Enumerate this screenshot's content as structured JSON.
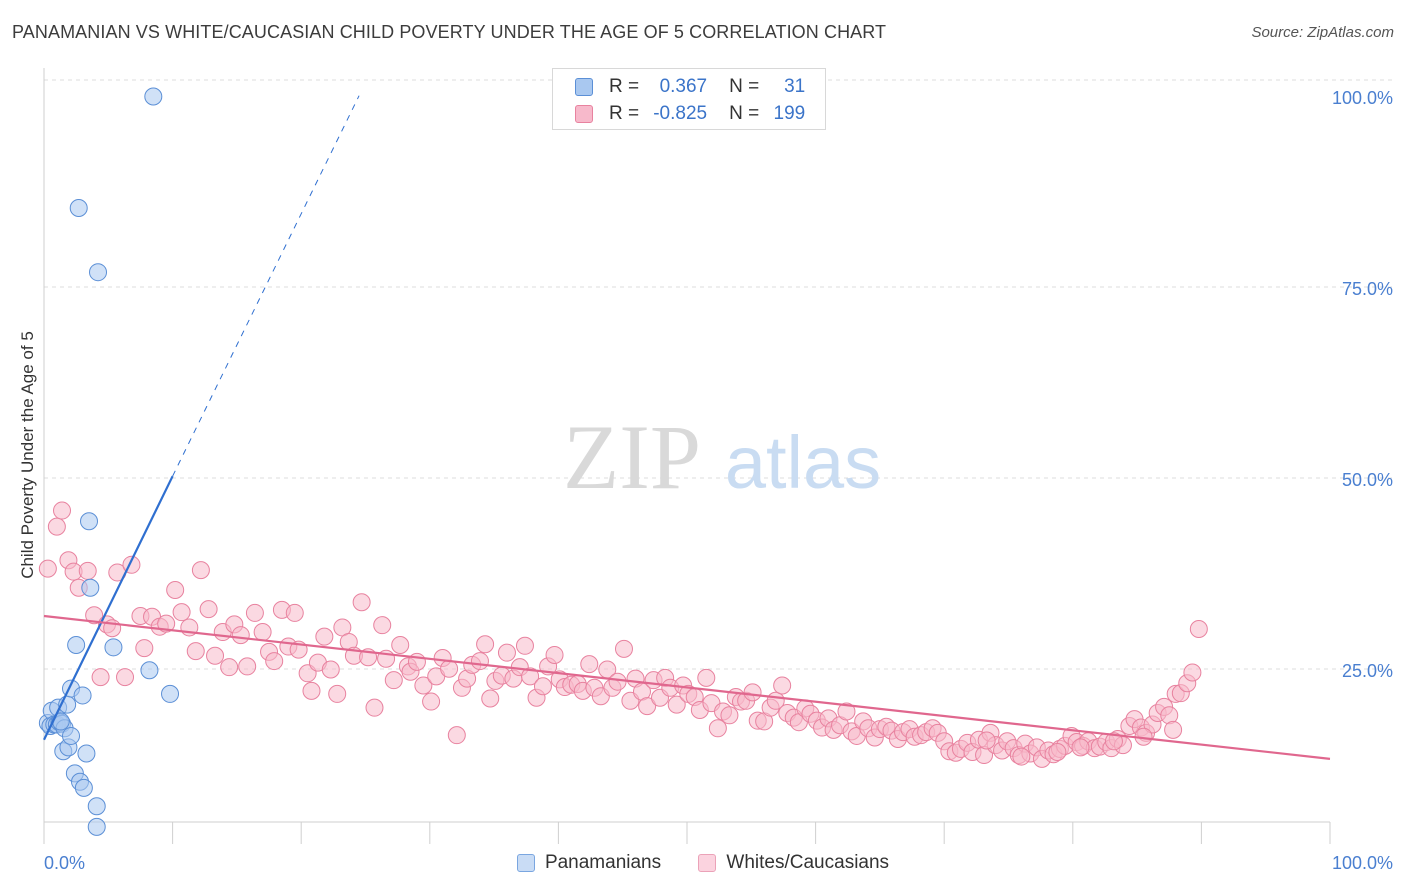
{
  "header": {
    "title": "PANAMANIAN VS WHITE/CAUCASIAN CHILD POVERTY UNDER THE AGE OF 5 CORRELATION CHART",
    "source": "Source: ZipAtlas.com"
  },
  "watermark": {
    "zip": "ZIP",
    "atlas": "atlas"
  },
  "legend": {
    "series": [
      {
        "r_label": "R =",
        "r_value": "0.367",
        "n_label": "N =",
        "n_value": "31",
        "color": "#a9c8f0",
        "stroke": "#5b8fd6"
      },
      {
        "r_label": "R =",
        "r_value": "-0.825",
        "n_label": "N =",
        "n_value": "199",
        "color": "#f7b9cb",
        "stroke": "#e8829f"
      }
    ]
  },
  "chart_data": {
    "type": "scatter",
    "title": "PANAMANIAN VS WHITE/CAUCASIAN CHILD POVERTY UNDER THE AGE OF 5 CORRELATION CHART",
    "xlabel": "",
    "ylabel": "Child Poverty Under the Age of 5",
    "xlim": [
      0,
      100
    ],
    "ylim": [
      0,
      100
    ],
    "x_tick_labels": [
      "0.0%",
      "100.0%"
    ],
    "y_tick_labels": [
      "25.0%",
      "50.0%",
      "75.0%",
      "100.0%"
    ],
    "y_ticks": [
      25,
      50,
      75,
      100
    ],
    "grid": true,
    "legend_position": "bottom",
    "series": [
      {
        "name": "Panamanians",
        "color": "#a9c8f0",
        "stroke": "#5b8fd6",
        "line_color": "#2f6fd0",
        "trend": {
          "x_start": 0,
          "y_start": 16.0,
          "x_end": 10,
          "y_end": 50.5,
          "dash_to_x": 24.5,
          "dash_to_y": 100.3
        },
        "points": [
          [
            0.3,
            18.2
          ],
          [
            0.5,
            17.8
          ],
          [
            0.6,
            19.8
          ],
          [
            0.8,
            18.0
          ],
          [
            1.0,
            18.0
          ],
          [
            1.1,
            20.2
          ],
          [
            1.2,
            18.3
          ],
          [
            1.4,
            18.1
          ],
          [
            1.6,
            17.5
          ],
          [
            1.5,
            14.5
          ],
          [
            1.8,
            20.6
          ],
          [
            1.9,
            15.0
          ],
          [
            2.1,
            16.5
          ],
          [
            2.1,
            22.7
          ],
          [
            2.4,
            11.6
          ],
          [
            2.5,
            28.4
          ],
          [
            2.8,
            10.5
          ],
          [
            3.0,
            21.8
          ],
          [
            3.1,
            9.7
          ],
          [
            3.3,
            14.2
          ],
          [
            3.6,
            35.9
          ],
          [
            3.5,
            44.6
          ],
          [
            4.1,
            7.3
          ],
          [
            4.1,
            4.6
          ],
          [
            2.7,
            85.6
          ],
          [
            4.2,
            77.2
          ],
          [
            5.4,
            28.1
          ],
          [
            8.2,
            25.1
          ],
          [
            9.8,
            22.0
          ],
          [
            8.5,
            100.2
          ],
          [
            1.3,
            18.4
          ]
        ]
      },
      {
        "name": "Whites/Caucasians",
        "color": "#f7b9cb",
        "stroke": "#e8829f",
        "line_color": "#e0678e",
        "trend": {
          "x_start": 0,
          "y_start": 32.2,
          "x_end": 100,
          "y_end": 13.5
        },
        "points": [
          [
            0.3,
            38.4
          ],
          [
            1.0,
            43.9
          ],
          [
            1.4,
            46.0
          ],
          [
            1.9,
            39.5
          ],
          [
            2.3,
            38.0
          ],
          [
            2.7,
            35.9
          ],
          [
            3.4,
            38.1
          ],
          [
            3.9,
            32.3
          ],
          [
            4.4,
            24.2
          ],
          [
            4.9,
            31.1
          ],
          [
            5.3,
            30.6
          ],
          [
            5.7,
            37.9
          ],
          [
            6.3,
            24.2
          ],
          [
            6.8,
            38.9
          ],
          [
            7.5,
            32.2
          ],
          [
            7.8,
            28.0
          ],
          [
            8.4,
            32.1
          ],
          [
            9.0,
            30.8
          ],
          [
            9.5,
            31.2
          ],
          [
            10.2,
            35.6
          ],
          [
            10.7,
            32.7
          ],
          [
            11.3,
            30.7
          ],
          [
            11.8,
            27.6
          ],
          [
            12.2,
            38.2
          ],
          [
            12.8,
            33.1
          ],
          [
            13.3,
            27.0
          ],
          [
            13.9,
            30.1
          ],
          [
            14.4,
            25.5
          ],
          [
            14.8,
            31.1
          ],
          [
            15.3,
            29.7
          ],
          [
            15.8,
            25.6
          ],
          [
            16.4,
            32.6
          ],
          [
            17.0,
            30.1
          ],
          [
            17.5,
            27.5
          ],
          [
            17.9,
            26.3
          ],
          [
            18.5,
            33.0
          ],
          [
            19.0,
            28.2
          ],
          [
            19.5,
            32.6
          ],
          [
            19.8,
            27.8
          ],
          [
            20.5,
            24.7
          ],
          [
            20.8,
            22.4
          ],
          [
            21.3,
            26.1
          ],
          [
            21.8,
            29.5
          ],
          [
            22.3,
            25.2
          ],
          [
            22.8,
            22.0
          ],
          [
            23.2,
            30.7
          ],
          [
            23.7,
            28.8
          ],
          [
            24.1,
            27.0
          ],
          [
            24.7,
            34.0
          ],
          [
            25.2,
            26.8
          ],
          [
            25.7,
            20.2
          ],
          [
            26.3,
            31.0
          ],
          [
            26.6,
            26.6
          ],
          [
            27.2,
            23.8
          ],
          [
            27.7,
            28.4
          ],
          [
            28.3,
            25.6
          ],
          [
            28.5,
            24.9
          ],
          [
            29.0,
            26.2
          ],
          [
            29.5,
            23.1
          ],
          [
            30.1,
            21.0
          ],
          [
            30.5,
            24.3
          ],
          [
            31.0,
            26.7
          ],
          [
            31.5,
            25.3
          ],
          [
            32.1,
            16.6
          ],
          [
            32.5,
            22.8
          ],
          [
            32.9,
            24.0
          ],
          [
            33.3,
            25.8
          ],
          [
            33.9,
            26.3
          ],
          [
            34.3,
            28.5
          ],
          [
            34.7,
            21.4
          ],
          [
            35.1,
            23.7
          ],
          [
            35.6,
            24.4
          ],
          [
            36.0,
            27.4
          ],
          [
            36.5,
            24.0
          ],
          [
            37.0,
            25.5
          ],
          [
            37.4,
            28.3
          ],
          [
            37.8,
            24.3
          ],
          [
            38.3,
            21.5
          ],
          [
            38.8,
            23.0
          ],
          [
            39.2,
            25.6
          ],
          [
            39.7,
            27.1
          ],
          [
            40.1,
            23.9
          ],
          [
            40.5,
            22.9
          ],
          [
            41.0,
            23.2
          ],
          [
            41.5,
            23.3
          ],
          [
            41.9,
            22.4
          ],
          [
            42.4,
            25.9
          ],
          [
            42.8,
            22.8
          ],
          [
            43.3,
            21.7
          ],
          [
            43.8,
            25.2
          ],
          [
            44.2,
            22.8
          ],
          [
            44.6,
            23.6
          ],
          [
            45.1,
            27.9
          ],
          [
            45.6,
            21.1
          ],
          [
            46.0,
            24.0
          ],
          [
            46.5,
            22.3
          ],
          [
            46.9,
            20.4
          ],
          [
            47.4,
            23.8
          ],
          [
            47.9,
            21.5
          ],
          [
            48.3,
            24.1
          ],
          [
            48.7,
            22.8
          ],
          [
            49.2,
            20.6
          ],
          [
            49.7,
            23.1
          ],
          [
            50.1,
            22.0
          ],
          [
            50.6,
            21.6
          ],
          [
            51.0,
            19.9
          ],
          [
            51.5,
            24.1
          ],
          [
            51.9,
            20.8
          ],
          [
            52.4,
            17.5
          ],
          [
            52.8,
            19.7
          ],
          [
            53.3,
            19.2
          ],
          [
            53.8,
            21.6
          ],
          [
            54.2,
            21.0
          ],
          [
            54.6,
            21.1
          ],
          [
            55.1,
            22.2
          ],
          [
            55.5,
            18.5
          ],
          [
            56.0,
            18.4
          ],
          [
            56.5,
            20.2
          ],
          [
            56.9,
            21.1
          ],
          [
            57.4,
            23.1
          ],
          [
            57.8,
            19.5
          ],
          [
            58.3,
            18.9
          ],
          [
            58.7,
            18.3
          ],
          [
            59.2,
            20.1
          ],
          [
            59.6,
            19.4
          ],
          [
            60.1,
            18.5
          ],
          [
            60.5,
            17.6
          ],
          [
            61.0,
            18.8
          ],
          [
            61.4,
            17.3
          ],
          [
            61.9,
            17.9
          ],
          [
            62.4,
            19.7
          ],
          [
            62.8,
            17.1
          ],
          [
            63.2,
            16.5
          ],
          [
            63.7,
            18.4
          ],
          [
            64.1,
            17.5
          ],
          [
            64.6,
            16.3
          ],
          [
            65.0,
            17.4
          ],
          [
            65.5,
            17.7
          ],
          [
            65.9,
            17.2
          ],
          [
            66.4,
            16.1
          ],
          [
            66.8,
            17.0
          ],
          [
            67.3,
            17.4
          ],
          [
            67.7,
            16.4
          ],
          [
            68.2,
            16.6
          ],
          [
            68.6,
            17.0
          ],
          [
            69.1,
            17.5
          ],
          [
            69.5,
            16.9
          ],
          [
            70.0,
            15.8
          ],
          [
            70.4,
            14.5
          ],
          [
            70.9,
            14.3
          ],
          [
            71.3,
            14.8
          ],
          [
            71.8,
            15.6
          ],
          [
            72.2,
            14.4
          ],
          [
            72.7,
            16.0
          ],
          [
            73.1,
            14.0
          ],
          [
            73.6,
            16.9
          ],
          [
            74.0,
            15.3
          ],
          [
            74.5,
            14.6
          ],
          [
            74.9,
            15.8
          ],
          [
            75.4,
            14.9
          ],
          [
            75.8,
            14.0
          ],
          [
            76.3,
            15.5
          ],
          [
            76.7,
            14.2
          ],
          [
            77.2,
            15.0
          ],
          [
            77.6,
            13.5
          ],
          [
            78.1,
            14.6
          ],
          [
            78.5,
            14.1
          ],
          [
            79.0,
            14.8
          ],
          [
            79.4,
            15.2
          ],
          [
            79.9,
            16.5
          ],
          [
            80.3,
            15.7
          ],
          [
            80.8,
            15.2
          ],
          [
            81.2,
            15.8
          ],
          [
            81.7,
            14.9
          ],
          [
            82.1,
            15.1
          ],
          [
            82.6,
            15.7
          ],
          [
            83.0,
            14.9
          ],
          [
            83.5,
            16.1
          ],
          [
            83.9,
            15.3
          ],
          [
            84.4,
            17.8
          ],
          [
            84.8,
            18.7
          ],
          [
            85.3,
            17.6
          ],
          [
            85.7,
            16.9
          ],
          [
            86.2,
            18.0
          ],
          [
            86.6,
            19.5
          ],
          [
            87.1,
            20.3
          ],
          [
            87.5,
            19.2
          ],
          [
            88.0,
            22.0
          ],
          [
            88.4,
            22.1
          ],
          [
            88.9,
            23.4
          ],
          [
            89.3,
            24.8
          ],
          [
            89.8,
            30.5
          ],
          [
            87.8,
            17.3
          ],
          [
            85.5,
            16.4
          ],
          [
            83.2,
            15.8
          ],
          [
            80.6,
            15.0
          ],
          [
            78.8,
            14.4
          ],
          [
            76.0,
            13.8
          ],
          [
            73.3,
            15.9
          ]
        ]
      }
    ]
  }
}
